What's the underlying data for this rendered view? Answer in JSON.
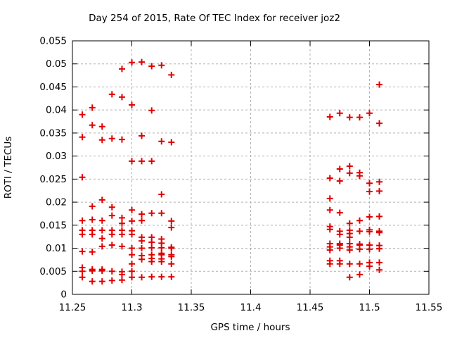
{
  "title": "Day 254 of 2015, Rate Of TEC Index for receiver joz2",
  "chart_data": {
    "type": "scatter",
    "title": "Day 254 of 2015, Rate Of TEC Index for receiver joz2",
    "xlabel": "GPS time / hours",
    "ylabel": "ROTI / TECUs",
    "xlim": [
      11.25,
      11.55
    ],
    "ylim": [
      0,
      0.055
    ],
    "xticks": [
      11.25,
      11.3,
      11.35,
      11.4,
      11.45,
      11.5,
      11.55
    ],
    "xtick_labels": [
      "11.25",
      "11.3",
      "11.35",
      "11.4",
      "11.45",
      "11.5",
      "11.55"
    ],
    "yticks": [
      0,
      0.005,
      0.01,
      0.015,
      0.02,
      0.025,
      0.03,
      0.035,
      0.04,
      0.045,
      0.05,
      0.055
    ],
    "ytick_labels": [
      "0",
      "0.005",
      "0.01",
      "0.015",
      "0.02",
      "0.025",
      "0.03",
      "0.035",
      "0.04",
      "0.045",
      "0.05",
      "0.055"
    ],
    "grid": true,
    "legend_position": "none",
    "marker": "plus",
    "marker_color": "#e00000",
    "grid_color": "#b0b0b0",
    "border_color": "#000000",
    "points": [
      [
        11.2583,
        0.039
      ],
      [
        11.2583,
        0.0341
      ],
      [
        11.2583,
        0.0254
      ],
      [
        11.2583,
        0.016
      ],
      [
        11.2583,
        0.0139
      ],
      [
        11.2583,
        0.013
      ],
      [
        11.2583,
        0.0093
      ],
      [
        11.2583,
        0.0058
      ],
      [
        11.2583,
        0.005
      ],
      [
        11.2583,
        0.0037
      ],
      [
        11.2667,
        0.0405
      ],
      [
        11.2667,
        0.0367
      ],
      [
        11.2667,
        0.0191
      ],
      [
        11.2667,
        0.0162
      ],
      [
        11.2667,
        0.0139
      ],
      [
        11.2667,
        0.013
      ],
      [
        11.2667,
        0.0092
      ],
      [
        11.2667,
        0.0054
      ],
      [
        11.2667,
        0.0051
      ],
      [
        11.2667,
        0.0028
      ],
      [
        11.275,
        0.0364
      ],
      [
        11.275,
        0.0335
      ],
      [
        11.275,
        0.0205
      ],
      [
        11.275,
        0.016
      ],
      [
        11.275,
        0.0139
      ],
      [
        11.275,
        0.0121
      ],
      [
        11.275,
        0.0104
      ],
      [
        11.275,
        0.0054
      ],
      [
        11.275,
        0.0051
      ],
      [
        11.275,
        0.0028
      ],
      [
        11.2833,
        0.0434
      ],
      [
        11.2833,
        0.0338
      ],
      [
        11.2833,
        0.0189
      ],
      [
        11.2833,
        0.0171
      ],
      [
        11.2833,
        0.0139
      ],
      [
        11.2833,
        0.013
      ],
      [
        11.2833,
        0.0107
      ],
      [
        11.2833,
        0.005
      ],
      [
        11.2833,
        0.003
      ],
      [
        11.2917,
        0.0489
      ],
      [
        11.2917,
        0.0428
      ],
      [
        11.2917,
        0.0336
      ],
      [
        11.2917,
        0.0166
      ],
      [
        11.2917,
        0.0154
      ],
      [
        11.2917,
        0.0139
      ],
      [
        11.2917,
        0.013
      ],
      [
        11.2917,
        0.0104
      ],
      [
        11.2917,
        0.0049
      ],
      [
        11.2917,
        0.0043
      ],
      [
        11.2917,
        0.0031
      ],
      [
        11.3,
        0.0503
      ],
      [
        11.3,
        0.0411
      ],
      [
        11.3,
        0.0289
      ],
      [
        11.3,
        0.0183
      ],
      [
        11.3,
        0.0159
      ],
      [
        11.3,
        0.0138
      ],
      [
        11.3,
        0.013
      ],
      [
        11.3,
        0.01
      ],
      [
        11.3,
        0.0086
      ],
      [
        11.3,
        0.0066
      ],
      [
        11.3,
        0.005
      ],
      [
        11.3,
        0.0037
      ],
      [
        11.3083,
        0.0504
      ],
      [
        11.3083,
        0.0344
      ],
      [
        11.3083,
        0.0289
      ],
      [
        11.3083,
        0.0174
      ],
      [
        11.3083,
        0.016
      ],
      [
        11.3083,
        0.0124
      ],
      [
        11.3083,
        0.0116
      ],
      [
        11.3083,
        0.01
      ],
      [
        11.3083,
        0.0084
      ],
      [
        11.3083,
        0.0076
      ],
      [
        11.3083,
        0.0037
      ],
      [
        11.3167,
        0.0495
      ],
      [
        11.3167,
        0.0399
      ],
      [
        11.3167,
        0.0289
      ],
      [
        11.3167,
        0.0176
      ],
      [
        11.3167,
        0.0124
      ],
      [
        11.3167,
        0.0113
      ],
      [
        11.3167,
        0.0101
      ],
      [
        11.3167,
        0.0086
      ],
      [
        11.3167,
        0.0078
      ],
      [
        11.3167,
        0.0071
      ],
      [
        11.3167,
        0.0038
      ],
      [
        11.325,
        0.0497
      ],
      [
        11.325,
        0.0332
      ],
      [
        11.325,
        0.0217
      ],
      [
        11.325,
        0.0176
      ],
      [
        11.325,
        0.012
      ],
      [
        11.325,
        0.0111
      ],
      [
        11.325,
        0.0101
      ],
      [
        11.325,
        0.0089
      ],
      [
        11.325,
        0.0086
      ],
      [
        11.325,
        0.0077
      ],
      [
        11.325,
        0.0071
      ],
      [
        11.325,
        0.0038
      ],
      [
        11.3333,
        0.0476
      ],
      [
        11.3333,
        0.033
      ],
      [
        11.3333,
        0.0159
      ],
      [
        11.3333,
        0.0145
      ],
      [
        11.3333,
        0.0102
      ],
      [
        11.3333,
        0.01
      ],
      [
        11.3333,
        0.0086
      ],
      [
        11.3333,
        0.0082
      ],
      [
        11.3333,
        0.0066
      ],
      [
        11.3333,
        0.0038
      ],
      [
        11.4667,
        0.0385
      ],
      [
        11.4667,
        0.0252
      ],
      [
        11.4667,
        0.0208
      ],
      [
        11.4667,
        0.0183
      ],
      [
        11.4667,
        0.0147
      ],
      [
        11.4667,
        0.0141
      ],
      [
        11.4667,
        0.011
      ],
      [
        11.4667,
        0.0103
      ],
      [
        11.4667,
        0.0096
      ],
      [
        11.4667,
        0.0073
      ],
      [
        11.4667,
        0.0066
      ],
      [
        11.475,
        0.0393
      ],
      [
        11.475,
        0.0272
      ],
      [
        11.475,
        0.0246
      ],
      [
        11.475,
        0.0177
      ],
      [
        11.475,
        0.0137
      ],
      [
        11.475,
        0.013
      ],
      [
        11.475,
        0.011
      ],
      [
        11.475,
        0.0107
      ],
      [
        11.475,
        0.01
      ],
      [
        11.475,
        0.0073
      ],
      [
        11.475,
        0.0066
      ],
      [
        11.4833,
        0.0384
      ],
      [
        11.4833,
        0.0278
      ],
      [
        11.4833,
        0.0263
      ],
      [
        11.4833,
        0.0154
      ],
      [
        11.4833,
        0.0139
      ],
      [
        11.4833,
        0.0132
      ],
      [
        11.4833,
        0.0124
      ],
      [
        11.4833,
        0.011
      ],
      [
        11.4833,
        0.0103
      ],
      [
        11.4833,
        0.0096
      ],
      [
        11.4833,
        0.0066
      ],
      [
        11.4833,
        0.0037
      ],
      [
        11.4917,
        0.0384
      ],
      [
        11.4917,
        0.0264
      ],
      [
        11.4917,
        0.0257
      ],
      [
        11.4917,
        0.016
      ],
      [
        11.4917,
        0.0137
      ],
      [
        11.4917,
        0.0109
      ],
      [
        11.4917,
        0.0107
      ],
      [
        11.4917,
        0.0098
      ],
      [
        11.4917,
        0.0066
      ],
      [
        11.4917,
        0.0043
      ],
      [
        11.5,
        0.0393
      ],
      [
        11.5,
        0.0241
      ],
      [
        11.5,
        0.0223
      ],
      [
        11.5,
        0.0168
      ],
      [
        11.5,
        0.014
      ],
      [
        11.5,
        0.0136
      ],
      [
        11.5,
        0.0107
      ],
      [
        11.5,
        0.0098
      ],
      [
        11.5,
        0.0069
      ],
      [
        11.5,
        0.0061
      ],
      [
        11.5083,
        0.0455
      ],
      [
        11.5083,
        0.0371
      ],
      [
        11.5083,
        0.0244
      ],
      [
        11.5083,
        0.0224
      ],
      [
        11.5083,
        0.0169
      ],
      [
        11.5083,
        0.0137
      ],
      [
        11.5083,
        0.0134
      ],
      [
        11.5083,
        0.0106
      ],
      [
        11.5083,
        0.0099
      ],
      [
        11.5083,
        0.0069
      ],
      [
        11.5083,
        0.0053
      ]
    ]
  }
}
